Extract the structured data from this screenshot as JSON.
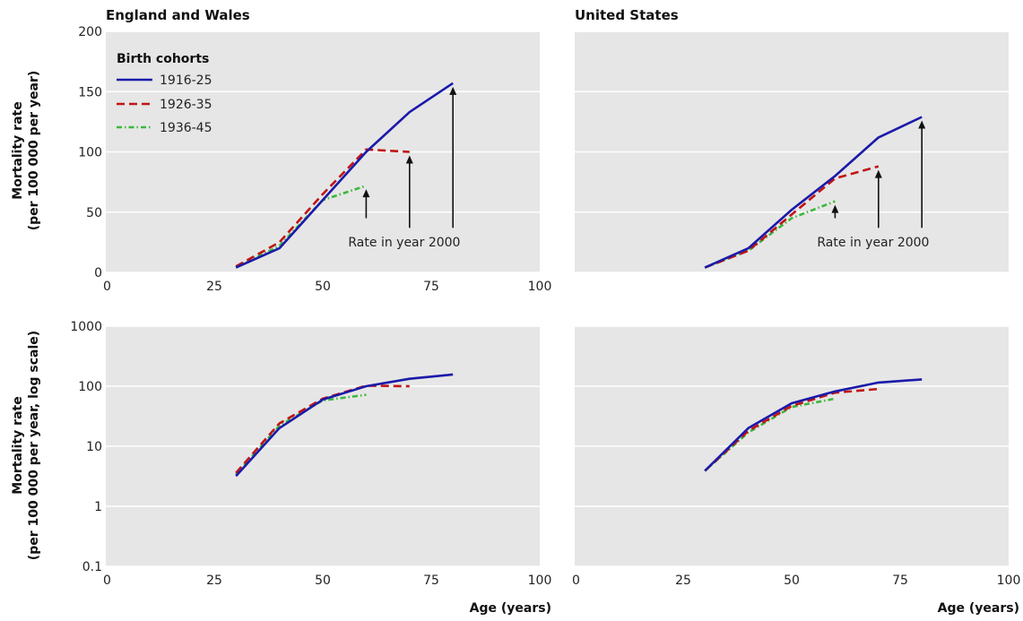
{
  "figure": {
    "panel_titles": [
      "England and Wales",
      "United States"
    ],
    "ylabel_linear_line1": "Mortality rate",
    "ylabel_linear_line2": "(per 100 000 per year)",
    "ylabel_log_line1": "Mortality rate",
    "ylabel_log_line2": "(per 100 000 per year, log scale)",
    "xlabel": "Age (years)",
    "legend_title": "Birth cohorts",
    "annotation": "Rate in year 2000"
  },
  "colors": {
    "1916-25": "#1a1aaa",
    "1926-35": "#c01515",
    "1936-45": "#3cb83c",
    "panel_background": "#e6e6e6",
    "gridlines": "#ffffff"
  },
  "chart_data": [
    {
      "type": "line",
      "title": "England and Wales",
      "xlabel": "",
      "ylabel": "Mortality rate (per 100 000 per year)",
      "xlim": [
        0,
        100
      ],
      "ylim": [
        0,
        200
      ],
      "xticks": [
        "0",
        "25",
        "50",
        "75",
        "100"
      ],
      "yticks": [
        "0",
        "50",
        "100",
        "150",
        "200"
      ],
      "legend_placement": "top-left",
      "series": [
        {
          "name": "1916-25",
          "x": [
            30,
            40,
            50,
            60,
            70,
            80
          ],
          "y": [
            4,
            20,
            60,
            100,
            133,
            157
          ]
        },
        {
          "name": "1926-35",
          "x": [
            30,
            40,
            50,
            60,
            70
          ],
          "y": [
            5,
            25,
            65,
            102,
            100
          ]
        },
        {
          "name": "1936-45",
          "x": [
            30,
            40,
            50,
            60
          ],
          "y": [
            4,
            22,
            60,
            72
          ]
        }
      ],
      "annotation": {
        "text": "Rate in year 2000",
        "arrow_points": [
          [
            60,
            72
          ],
          [
            70,
            100
          ],
          [
            80,
            157
          ]
        ]
      }
    },
    {
      "type": "line",
      "title": "United States",
      "xlabel": "",
      "ylabel": "",
      "xlim": [
        0,
        100
      ],
      "ylim": [
        0,
        200
      ],
      "xticks": [],
      "yticks": [],
      "series": [
        {
          "name": "1916-25",
          "x": [
            30,
            40,
            50,
            60,
            70,
            80
          ],
          "y": [
            4,
            20,
            52,
            80,
            112,
            129
          ]
        },
        {
          "name": "1926-35",
          "x": [
            30,
            40,
            50,
            60,
            70
          ],
          "y": [
            4,
            18,
            48,
            78,
            88
          ]
        },
        {
          "name": "1936-45",
          "x": [
            30,
            40,
            50,
            60
          ],
          "y": [
            4,
            18,
            45,
            59
          ]
        }
      ],
      "annotation": {
        "text": "Rate in year 2000",
        "arrow_points": [
          [
            60,
            59
          ],
          [
            70,
            88
          ],
          [
            80,
            129
          ]
        ]
      }
    },
    {
      "type": "line",
      "title": "",
      "xlabel": "Age (years)",
      "ylabel": "Mortality rate (per 100 000 per year, log scale)",
      "xlim": [
        0,
        100
      ],
      "ylim": [
        0.1,
        1000
      ],
      "yscale": "log",
      "xticks": [
        "0",
        "25",
        "50",
        "75",
        "100"
      ],
      "yticks": [
        "0.1",
        "1",
        "10",
        "100",
        "1000"
      ],
      "series": [
        {
          "name": "1916-25",
          "x": [
            30,
            40,
            50,
            60,
            70,
            80
          ],
          "y": [
            3.2,
            20,
            60,
            100,
            133,
            157
          ]
        },
        {
          "name": "1926-35",
          "x": [
            30,
            40,
            50,
            60,
            70
          ],
          "y": [
            3.6,
            24,
            62,
            102,
            100
          ]
        },
        {
          "name": "1936-45",
          "x": [
            30,
            40,
            50,
            60
          ],
          "y": [
            3.4,
            22,
            58,
            72
          ]
        }
      ]
    },
    {
      "type": "line",
      "title": "",
      "xlabel": "Age (years)",
      "ylabel": "",
      "xlim": [
        0,
        100
      ],
      "ylim": [
        0.1,
        1000
      ],
      "yscale": "log",
      "xticks": [
        "0",
        "25",
        "50",
        "75",
        "100"
      ],
      "yticks": [],
      "series": [
        {
          "name": "1916-25",
          "x": [
            30,
            40,
            50,
            60,
            70,
            80
          ],
          "y": [
            3.9,
            20,
            52,
            82,
            115,
            130
          ]
        },
        {
          "name": "1926-35",
          "x": [
            30,
            40,
            50,
            60,
            70
          ],
          "y": [
            3.9,
            18,
            47,
            78,
            90
          ]
        },
        {
          "name": "1936-45",
          "x": [
            30,
            40,
            50,
            60
          ],
          "y": [
            3.9,
            17,
            45,
            62
          ]
        }
      ]
    }
  ]
}
